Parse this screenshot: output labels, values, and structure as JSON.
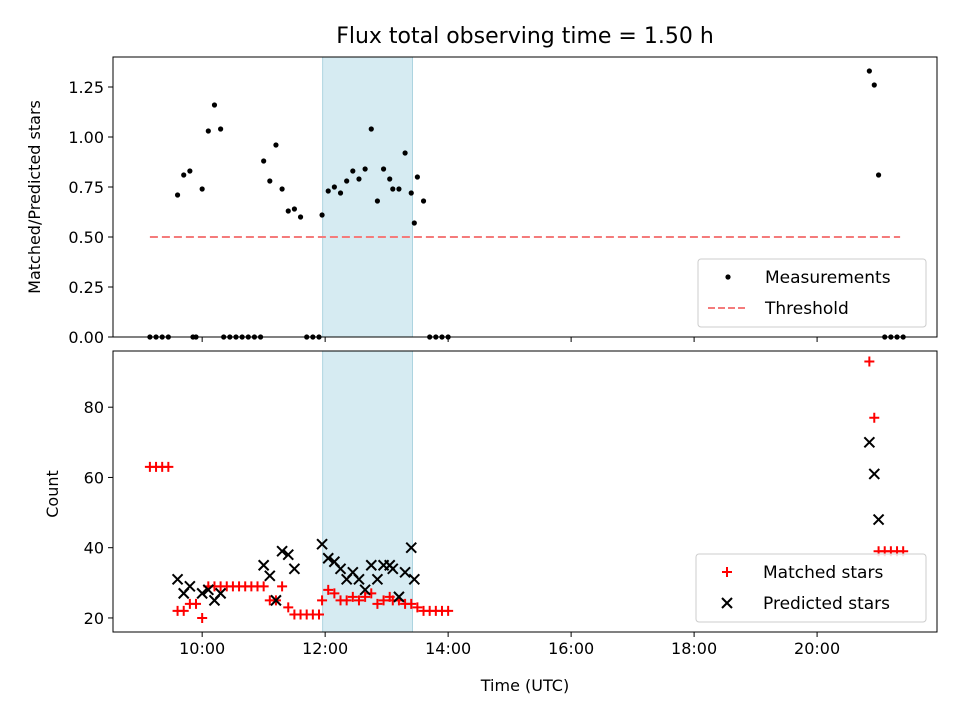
{
  "chart_data": [
    {
      "type": "scatter",
      "title": "Flux total observing time = 1.50 h",
      "xlabel": "",
      "ylabel": "Matched/Predicted stars",
      "xlim_hours": [
        8.55,
        21.95
      ],
      "ylim": [
        0,
        1.4
      ],
      "yticks": [
        0.0,
        0.25,
        0.5,
        0.75,
        1.0,
        1.25
      ],
      "ytick_labels": [
        "0.00",
        "0.25",
        "0.50",
        "0.75",
        "1.00",
        "1.25"
      ],
      "highlight_span_hours": [
        11.96,
        13.42
      ],
      "legend_position": "lower-right",
      "series": [
        {
          "name": "Measurements",
          "marker": "dot",
          "color": "#000000",
          "x_hours": [
            9.15,
            9.25,
            9.35,
            9.45,
            9.6,
            9.7,
            9.8,
            9.85,
            9.9,
            10.0,
            10.1,
            10.2,
            10.3,
            10.35,
            10.45,
            10.55,
            10.65,
            10.75,
            10.85,
            10.95,
            11.0,
            11.1,
            11.2,
            11.3,
            11.4,
            11.5,
            11.6,
            11.7,
            11.8,
            11.9,
            11.95,
            12.05,
            12.15,
            12.25,
            12.35,
            12.45,
            12.55,
            12.65,
            12.75,
            12.85,
            12.95,
            13.05,
            13.1,
            13.2,
            13.3,
            13.4,
            13.45,
            13.5,
            13.6,
            13.7,
            13.8,
            13.9,
            14.0,
            20.85,
            20.93,
            21.0,
            21.1,
            21.2,
            21.3,
            21.4
          ],
          "values": [
            0,
            0,
            0,
            0,
            0.71,
            0.81,
            0.83,
            0,
            0,
            0.74,
            1.03,
            1.16,
            1.04,
            0,
            0,
            0,
            0,
            0,
            0,
            0,
            0.88,
            0.78,
            0.96,
            0.74,
            0.63,
            0.64,
            0.6,
            0,
            0,
            0,
            0.61,
            0.73,
            0.75,
            0.72,
            0.78,
            0.83,
            0.79,
            0.84,
            1.04,
            0.68,
            0.84,
            0.79,
            0.74,
            0.74,
            0.92,
            0.72,
            0.57,
            0.8,
            0.68,
            0,
            0,
            0,
            0,
            1.33,
            1.26,
            0.81,
            0,
            0,
            0,
            0
          ]
        },
        {
          "name": "Threshold",
          "marker": "dashed-line",
          "color": "#f47b7b",
          "x_hours": [
            9.15,
            21.35
          ],
          "values": [
            0.5,
            0.5
          ]
        }
      ]
    },
    {
      "type": "scatter",
      "title": "",
      "xlabel": "Time (UTC)",
      "ylabel": "Count",
      "xlim_hours": [
        8.55,
        21.95
      ],
      "ylim": [
        16,
        96
      ],
      "xticks": [
        "10:00",
        "12:00",
        "14:00",
        "16:00",
        "18:00",
        "20:00"
      ],
      "yticks": [
        20,
        40,
        60,
        80
      ],
      "ytick_labels": [
        "20",
        "40",
        "60",
        "80"
      ],
      "highlight_span_hours": [
        11.96,
        13.42
      ],
      "legend_position": "lower-right",
      "series": [
        {
          "name": "Matched stars",
          "marker": "plus",
          "color": "#ff0000",
          "x_hours": [
            9.15,
            9.25,
            9.35,
            9.45,
            9.6,
            9.7,
            9.8,
            9.9,
            10.0,
            10.1,
            10.2,
            10.3,
            10.4,
            10.5,
            10.6,
            10.7,
            10.8,
            10.9,
            11.0,
            11.1,
            11.2,
            11.3,
            11.4,
            11.5,
            11.6,
            11.7,
            11.8,
            11.9,
            11.95,
            12.05,
            12.15,
            12.25,
            12.35,
            12.45,
            12.55,
            12.65,
            12.75,
            12.85,
            12.95,
            13.05,
            13.1,
            13.2,
            13.3,
            13.4,
            13.5,
            13.6,
            13.7,
            13.8,
            13.9,
            14.0,
            20.85,
            20.93,
            21.0,
            21.1,
            21.2,
            21.3,
            21.4
          ],
          "values": [
            63,
            63,
            63,
            63,
            22,
            22,
            24,
            24,
            20,
            29,
            29,
            29,
            29,
            29,
            29,
            29,
            29,
            29,
            29,
            25,
            25,
            29,
            23,
            21,
            21,
            21,
            21,
            21,
            25,
            28,
            27,
            25,
            25,
            26,
            25,
            26,
            27,
            24,
            25,
            26,
            25,
            25,
            24,
            24,
            23,
            22,
            22,
            22,
            22,
            22,
            93,
            77,
            39,
            39,
            39,
            39,
            39
          ]
        },
        {
          "name": "Predicted stars",
          "marker": "x",
          "color": "#000000",
          "x_hours": [
            9.6,
            9.7,
            9.8,
            10.0,
            10.1,
            10.2,
            10.3,
            11.0,
            11.1,
            11.2,
            11.3,
            11.4,
            11.5,
            11.95,
            12.05,
            12.15,
            12.25,
            12.35,
            12.45,
            12.55,
            12.65,
            12.75,
            12.85,
            12.95,
            13.05,
            13.1,
            13.2,
            13.3,
            13.4,
            13.45,
            20.85,
            20.93,
            21.0
          ],
          "values": [
            31,
            27,
            29,
            27,
            28,
            25,
            27,
            35,
            32,
            25,
            39,
            38,
            34,
            41,
            37,
            36,
            34,
            31,
            33,
            31,
            28,
            35,
            31,
            35,
            35,
            34,
            26,
            33,
            40,
            31,
            70,
            61,
            48
          ]
        }
      ]
    }
  ]
}
